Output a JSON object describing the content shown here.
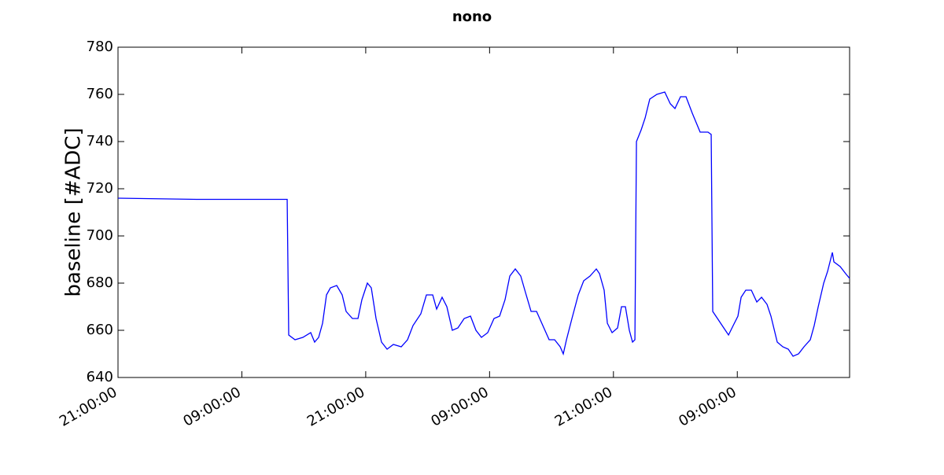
{
  "chart_data": {
    "type": "line",
    "title": "nono",
    "ylabel": "baseline [#ADC]",
    "x": [
      0,
      7.62,
      16.39,
      16.54,
      17.15,
      17.91,
      18.67,
      19.05,
      19.44,
      19.82,
      20.2,
      20.58,
      21.19,
      21.72,
      22.1,
      22.71,
      23.25,
      23.63,
      24.16,
      24.54,
      25.0,
      25.53,
      26.07,
      26.68,
      27.44,
      28.05,
      28.58,
      29.34,
      29.88,
      30.49,
      30.87,
      31.4,
      31.86,
      32.39,
      32.93,
      33.54,
      34.15,
      34.68,
      35.21,
      35.82,
      36.43,
      36.97,
      37.5,
      37.96,
      38.49,
      39.02,
      39.48,
      40.02,
      40.55,
      41.16,
      41.77,
      42.3,
      42.84,
      43.14,
      43.45,
      43.98,
      44.59,
      45.12,
      45.73,
      46.34,
      46.65,
      47.1,
      47.41,
      47.87,
      48.4,
      48.78,
      49.16,
      49.54,
      49.85,
      50.08,
      50.23,
      50.69,
      51.07,
      51.52,
      52.21,
      52.97,
      53.51,
      53.96,
      54.5,
      55.03,
      55.64,
      56.02,
      56.4,
      57.16,
      57.47,
      57.62,
      58.08,
      58.69,
      59.15,
      59.6,
      60.06,
      60.37,
      60.82,
      61.36,
      61.89,
      62.35,
      62.88,
      63.26,
      63.87,
      64.41,
      64.94,
      65.4,
      65.93,
      66.46,
      67.07,
      67.45,
      67.84,
      68.37,
      68.75,
      69.21,
      69.36,
      69.97,
      70.5,
      70.88
    ],
    "series": [
      {
        "name": "baseline",
        "color": "#0000ff",
        "values": [
          716,
          715.5,
          715.5,
          658,
          656,
          657,
          659,
          655,
          657,
          663,
          675,
          678,
          679,
          675,
          668,
          665,
          665,
          673,
          680,
          678,
          665,
          655,
          652,
          654,
          653,
          656,
          662,
          667,
          675,
          675,
          669,
          674,
          670,
          660,
          661,
          665,
          666,
          660,
          657,
          659,
          665,
          666,
          673,
          683,
          686,
          683,
          676,
          668,
          668,
          662,
          656,
          656,
          653,
          650,
          656,
          665,
          675,
          681,
          683,
          686,
          684,
          677,
          663,
          659,
          661,
          670,
          670,
          660,
          655,
          656,
          740,
          745,
          750,
          758,
          760,
          761,
          756,
          754,
          759,
          759,
          752,
          748,
          744,
          744,
          743,
          668,
          665,
          661,
          658,
          662,
          666,
          674,
          677,
          677,
          672,
          674,
          671,
          666,
          655,
          653,
          652,
          649,
          650,
          653,
          656,
          662,
          670,
          680,
          685,
          693,
          689,
          687,
          684,
          682
        ]
      }
    ],
    "xlim": [
      0,
      70.88
    ],
    "xticks": [
      {
        "value": 0,
        "label": "21:00:00"
      },
      {
        "value": 12,
        "label": "09:00:00"
      },
      {
        "value": 24,
        "label": "21:00:00"
      },
      {
        "value": 36,
        "label": "09:00:00"
      },
      {
        "value": 48,
        "label": "21:00:00"
      },
      {
        "value": 60,
        "label": "09:00:00"
      }
    ],
    "ylim": [
      640,
      780
    ],
    "yticks": [
      640,
      660,
      680,
      700,
      720,
      740,
      760,
      780
    ]
  }
}
